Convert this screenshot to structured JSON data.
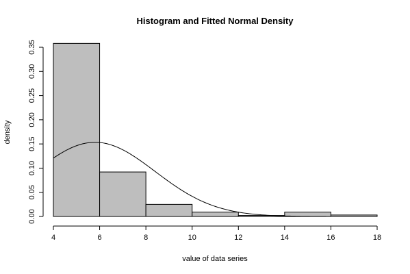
{
  "chart_data": {
    "type": "bar",
    "title": "Histogram and Fitted Normal Density",
    "xlabel": "value of data series",
    "ylabel": "density",
    "xlim": [
      4,
      18
    ],
    "ylim": [
      0,
      0.35
    ],
    "x_ticks": [
      "4",
      "6",
      "8",
      "10",
      "12",
      "14",
      "16",
      "18"
    ],
    "y_ticks": [
      "0.00",
      "0.05",
      "0.10",
      "0.15",
      "0.20",
      "0.25",
      "0.30",
      "0.35"
    ],
    "bins": [
      {
        "start": 4,
        "end": 6,
        "density": 0.358
      },
      {
        "start": 6,
        "end": 8,
        "density": 0.092
      },
      {
        "start": 8,
        "end": 10,
        "density": 0.025
      },
      {
        "start": 10,
        "end": 12,
        "density": 0.009
      },
      {
        "start": 12,
        "end": 14,
        "density": 0.002
      },
      {
        "start": 14,
        "end": 16,
        "density": 0.009
      },
      {
        "start": 16,
        "end": 18,
        "density": 0.003
      }
    ],
    "fitted_normal": {
      "mean": 5.8,
      "sd": 2.6
    },
    "bar_color": "#bebebe",
    "line_color": "#000000",
    "grid": false
  }
}
